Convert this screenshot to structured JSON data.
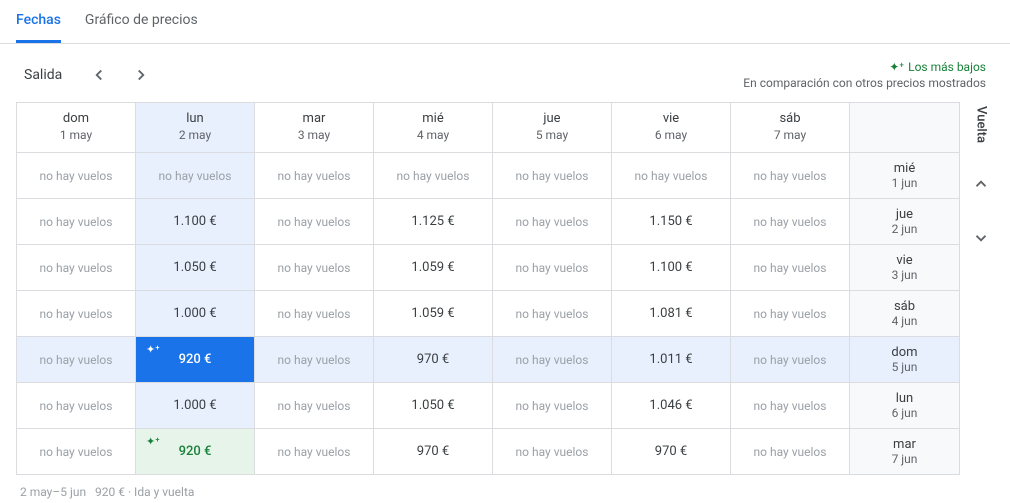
{
  "tabs": {
    "dates": "Fechas",
    "price_graph": "Gráfico de precios"
  },
  "departure_label": "Salida",
  "legend": {
    "lowest": "Los más bajos",
    "compare": "En comparación con otros precios mostrados"
  },
  "vuelta_label": "Vuelta",
  "no_flights": "no hay vuelos",
  "dep_headers": [
    {
      "dow": "dom",
      "date": "1 may"
    },
    {
      "dow": "lun",
      "date": "2 may"
    },
    {
      "dow": "mar",
      "date": "3 may"
    },
    {
      "dow": "mié",
      "date": "4 may"
    },
    {
      "dow": "jue",
      "date": "5 may"
    },
    {
      "dow": "vie",
      "date": "6 may"
    },
    {
      "dow": "sáb",
      "date": "7 may"
    }
  ],
  "ret_headers": [
    {
      "dow": "mié",
      "date": "1 jun"
    },
    {
      "dow": "jue",
      "date": "2 jun"
    },
    {
      "dow": "vie",
      "date": "3 jun"
    },
    {
      "dow": "sáb",
      "date": "4 jun"
    },
    {
      "dow": "dom",
      "date": "5 jun"
    },
    {
      "dow": "lun",
      "date": "6 jun"
    },
    {
      "dow": "mar",
      "date": "7 jun"
    }
  ],
  "rows": [
    [
      null,
      null,
      null,
      null,
      null,
      null,
      null
    ],
    [
      null,
      "1.100 €",
      null,
      "1.125 €",
      null,
      "1.150 €",
      null
    ],
    [
      null,
      "1.050 €",
      null,
      "1.059 €",
      null,
      "1.100 €",
      null
    ],
    [
      null,
      "1.000 €",
      null,
      "1.059 €",
      null,
      "1.081 €",
      null
    ],
    [
      null,
      "920 €",
      null,
      "970 €",
      null,
      "1.011 €",
      null
    ],
    [
      null,
      "1.000 €",
      null,
      "1.050 €",
      null,
      "1.046 €",
      null
    ],
    [
      null,
      "920 €",
      null,
      "970 €",
      null,
      "970 €",
      null
    ]
  ],
  "selected_dep_col": 1,
  "selected_ret_row": 4,
  "lowest_green": {
    "row": 6,
    "col": 1
  },
  "footer": {
    "range": "2 may–5 jun",
    "summary": "920 € · Ida y vuelta"
  },
  "colors": {
    "accent": "#1a73e8",
    "green": "#188038",
    "border": "#dadce0",
    "muted": "#5f6368",
    "faint": "#9aa0a6",
    "sel_bg": "#e8f0fe",
    "green_bg": "#e6f4ea",
    "return_bg": "#f8f9fa"
  }
}
